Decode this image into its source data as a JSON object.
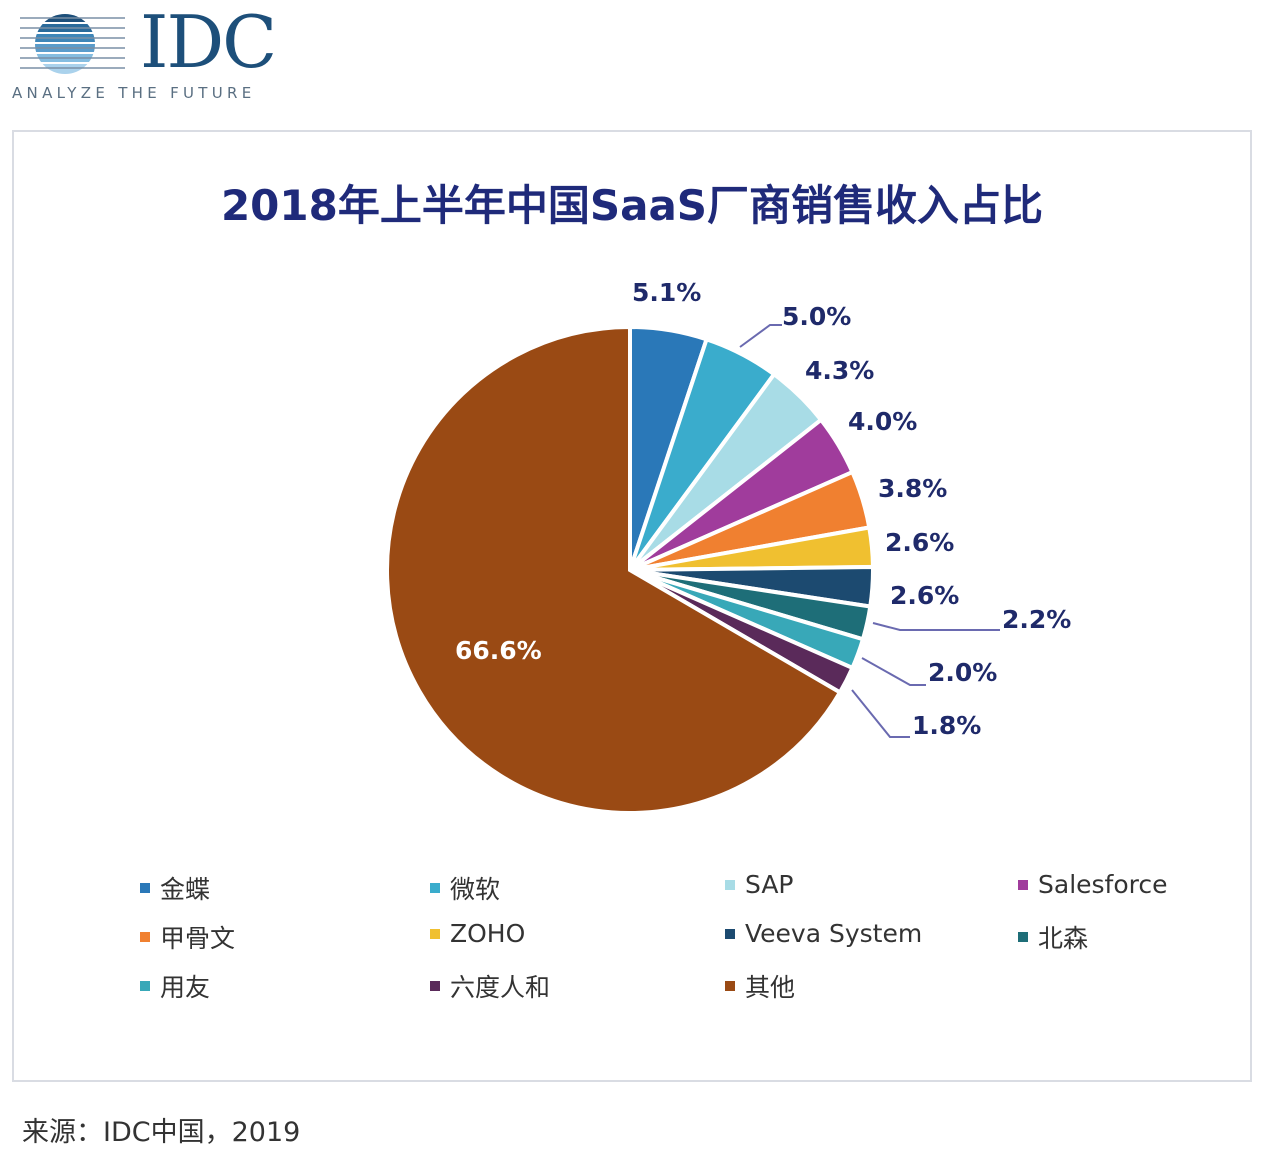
{
  "logo": {
    "text": "IDC",
    "tagline": "ANALYZE THE FUTURE"
  },
  "chart_data": {
    "type": "pie",
    "title": "2018年上半年中国SaaS厂商销售收入占比",
    "categories": [
      "金蝶",
      "微软",
      "SAP",
      "Salesforce",
      "甲骨文",
      "ZOHO",
      "Veeva System",
      "北森",
      "用友",
      "六度人和",
      "其他"
    ],
    "values": [
      5.1,
      5.0,
      4.3,
      4.0,
      3.8,
      2.6,
      2.6,
      2.2,
      2.0,
      1.8,
      66.6
    ],
    "data_labels": [
      "5.1%",
      "5.0%",
      "4.3%",
      "4.0%",
      "3.8%",
      "2.6%",
      "2.6%",
      "2.2%",
      "2.0%",
      "1.8%",
      "66.6%"
    ],
    "colors": [
      "#2a78b8",
      "#3aaccc",
      "#a8dce6",
      "#a03c9c",
      "#f08030",
      "#f0c030",
      "#1c4a70",
      "#1e6e78",
      "#38a8b8",
      "#5a2a5a",
      "#9a4a14"
    ],
    "start_angle": "12 o'clock, clockwise",
    "legend_position": "bottom"
  },
  "source": "来源：IDC中国，2019"
}
